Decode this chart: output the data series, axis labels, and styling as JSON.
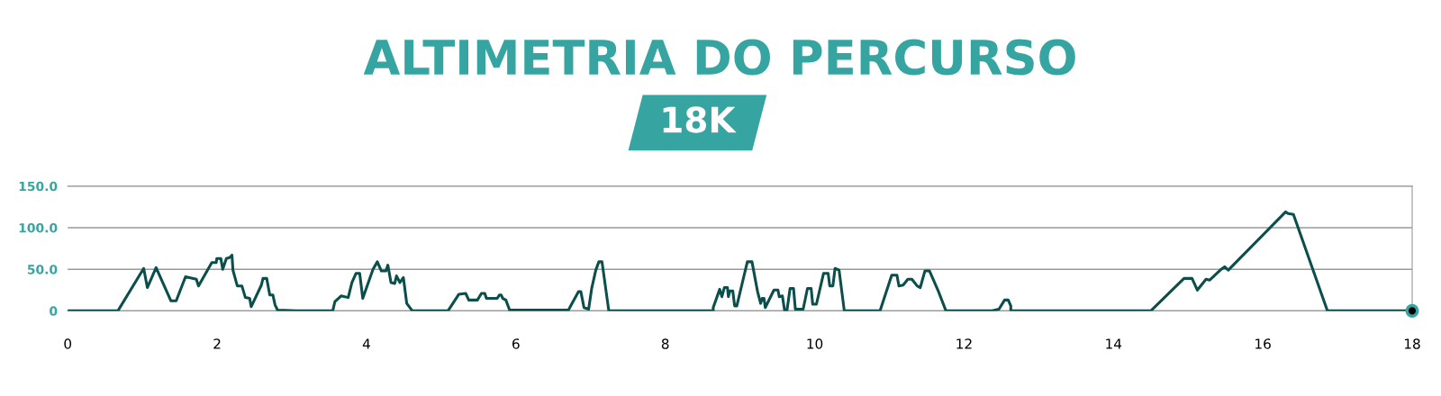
{
  "chart_data": {
    "type": "line",
    "title": "ALTIMETRIA DO PERCURSO",
    "subtitle": "18K",
    "xlim": [
      0,
      18
    ],
    "xticks": [
      0,
      2,
      4,
      6,
      8,
      10,
      12,
      14,
      16,
      18
    ],
    "ylim": [
      0,
      150
    ],
    "yticks": [
      {
        "value": 0,
        "label": "0"
      },
      {
        "value": 50,
        "label": "50.0"
      },
      {
        "value": 100,
        "label": "100.0"
      },
      {
        "value": 150,
        "label": "150.0"
      }
    ],
    "grid": "y",
    "marker": "none",
    "line_style": "solid",
    "series": [
      {
        "color": "#0a4f4b",
        "x": [
          0,
          0.672,
          1.017,
          1.066,
          1.183,
          1.382,
          1.452,
          1.577,
          1.722,
          1.751,
          1.929,
          1.988,
          1.996,
          2.05,
          2.075,
          2.124,
          2.166,
          2.199,
          2.212,
          2.27,
          2.332,
          2.378,
          2.436,
          2.456,
          2.593,
          2.614,
          2.664,
          2.705,
          2.747,
          2.776,
          2.809,
          3.058,
          3.548,
          3.577,
          3.66,
          3.755,
          3.805,
          3.859,
          3.909,
          3.95,
          4.087,
          4.145,
          4.199,
          4.261,
          4.286,
          4.328,
          4.378,
          4.402,
          4.448,
          4.494,
          4.539,
          4.614,
          5.091,
          5.237,
          5.328,
          5.369,
          5.485,
          5.539,
          5.584,
          5.605,
          5.75,
          5.779,
          5.804,
          5.825,
          5.866,
          5.916,
          6.704,
          6.746,
          6.837,
          6.87,
          6.912,
          6.974,
          7.015,
          7.07,
          7.111,
          7.153,
          7.244,
          8.642,
          8.642,
          8.729,
          8.758,
          8.791,
          8.833,
          8.845,
          8.866,
          8.904,
          8.929,
          8.958,
          9.099,
          9.161,
          9.236,
          9.277,
          9.298,
          9.322,
          9.339,
          9.455,
          9.509,
          9.526,
          9.568,
          9.597,
          9.63,
          9.671,
          9.717,
          9.742,
          9.846,
          9.904,
          9.953,
          9.974,
          10.024,
          10.119,
          10.181,
          10.202,
          10.244,
          10.273,
          10.327,
          10.397,
          10.875,
          11.032,
          11.102,
          11.128,
          11.185,
          11.248,
          11.302,
          11.372,
          11.414,
          11.476,
          11.538,
          11.65,
          11.758,
          12.364,
          12.468,
          12.543,
          12.592,
          12.626,
          12.626,
          14.501,
          14.945,
          15.053,
          15.124,
          15.24,
          15.29,
          15.443,
          15.489,
          15.538,
          16.306,
          16.339,
          16.41,
          16.866,
          18
        ],
        "values": [
          0,
          0,
          51,
          28,
          52,
          12,
          12,
          41,
          38,
          30,
          58,
          58,
          63,
          63,
          50,
          63,
          64,
          67,
          49,
          30,
          30,
          16,
          15,
          5,
          31,
          39,
          39,
          19,
          19,
          7,
          1,
          0,
          0,
          11,
          18,
          16,
          34,
          45,
          45,
          15,
          50,
          59,
          48,
          48,
          55,
          34,
          33,
          42,
          34,
          40,
          9,
          0,
          0,
          20,
          21,
          13,
          13,
          21,
          21,
          15,
          15,
          19,
          19,
          15,
          13,
          1,
          1,
          8,
          23,
          23,
          4,
          2,
          27,
          49,
          59,
          59,
          0,
          0,
          4,
          26,
          17,
          28,
          28,
          17,
          24,
          24,
          6,
          6,
          59,
          59,
          23,
          9,
          15,
          15,
          4,
          25,
          25,
          17,
          18,
          1,
          1,
          27,
          27,
          2,
          2,
          27,
          27,
          8,
          8,
          45,
          45,
          30,
          30,
          51,
          49,
          0,
          0,
          43,
          43,
          30,
          31,
          38,
          38,
          30,
          28,
          48,
          48,
          25,
          0,
          0,
          2,
          13,
          13,
          6,
          0,
          0,
          39,
          39,
          25,
          38,
          37,
          50,
          53,
          49,
          119,
          117,
          116,
          0,
          0
        ]
      },
      {
        "type": "scatter",
        "marker": "circle",
        "color": "#36a5a1",
        "x": [
          18
        ],
        "values": [
          0
        ]
      }
    ]
  }
}
